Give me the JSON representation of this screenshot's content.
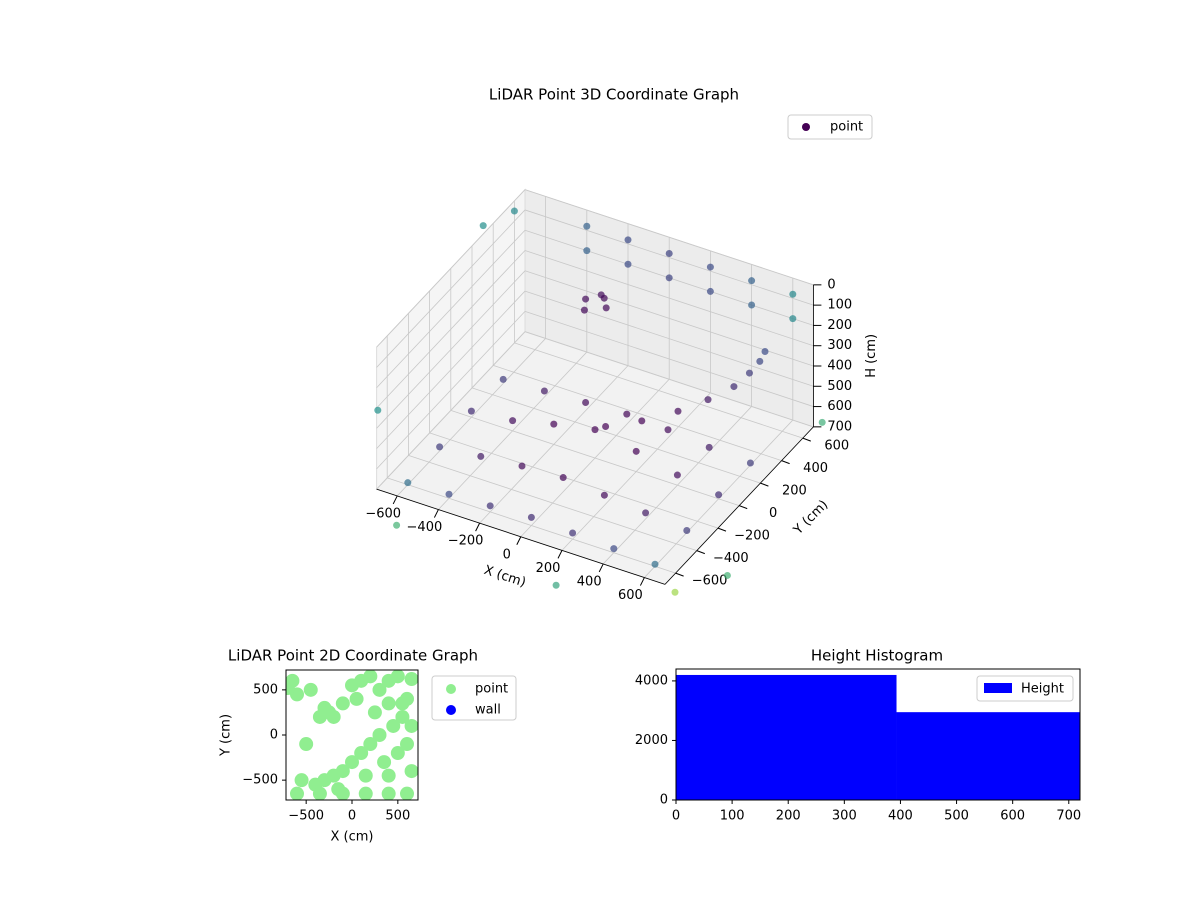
{
  "chart_data": [
    {
      "type": "scatter3d",
      "title": "LiDAR Point 3D Coordinate Graph",
      "xlabel": "X (cm)",
      "ylabel": "Y (cm)",
      "zlabel": "H (cm)",
      "xlim": [
        -700,
        700
      ],
      "ylim": [
        -700,
        700
      ],
      "zlim": [
        0,
        700
      ],
      "z_inverted": true,
      "colormap": "viridis",
      "legend": "upper right",
      "xticks": [
        {
          "value": -600,
          "label": "−600"
        },
        {
          "value": -400,
          "label": "−400"
        },
        {
          "value": -200,
          "label": "−200"
        },
        0,
        200,
        400,
        600
      ],
      "yticks": [
        {
          "value": -600,
          "label": "−600"
        },
        {
          "value": -400,
          "label": "−400"
        },
        {
          "value": -200,
          "label": "−200"
        },
        0,
        200,
        400,
        600
      ],
      "zticks": [
        0,
        100,
        200,
        300,
        400,
        500,
        600,
        700
      ],
      "series": [
        {
          "name": "point",
          "color": "#440154",
          "x": [
            -600,
            -400,
            -200,
            0,
            200,
            400,
            600,
            -600,
            -400,
            -200,
            0,
            200,
            400,
            600,
            -600,
            -400,
            -200,
            0,
            200,
            400,
            600,
            -600,
            -400,
            -200,
            0,
            200,
            400,
            600,
            0,
            150,
            300,
            420,
            520,
            580,
            620,
            640,
            -200,
            -150,
            -100,
            -180,
            -120,
            -400,
            -200,
            0,
            200,
            400,
            600,
            -400,
            -200,
            0,
            200,
            400,
            600,
            -900,
            900,
            -700,
            -800,
            800,
            -500,
            1000,
            300
          ],
          "y": [
            -600,
            -600,
            -600,
            -600,
            -600,
            -600,
            -600,
            -300,
            -300,
            -300,
            -300,
            -300,
            -300,
            -300,
            0,
            0,
            0,
            0,
            0,
            0,
            0,
            300,
            300,
            300,
            300,
            300,
            300,
            300,
            100,
            150,
            200,
            250,
            300,
            330,
            350,
            360,
            300,
            350,
            300,
            250,
            320,
            700,
            700,
            700,
            700,
            700,
            700,
            700,
            700,
            700,
            700,
            700,
            700,
            -300,
            -500,
            600,
            500,
            -800,
            -900,
            200,
            -950
          ],
          "z": [
            690,
            680,
            670,
            660,
            670,
            680,
            690,
            680,
            660,
            640,
            630,
            650,
            670,
            690,
            670,
            650,
            600,
            560,
            600,
            650,
            680,
            680,
            670,
            660,
            650,
            660,
            680,
            690,
            600,
            550,
            480,
            410,
            340,
            270,
            210,
            160,
            150,
            140,
            160,
            170,
            130,
            80,
            80,
            80,
            80,
            80,
            80,
            200,
            200,
            200,
            200,
            200,
            200,
            600,
            700,
            50,
            100,
            650,
            700,
            300,
            700
          ]
        }
      ]
    },
    {
      "type": "scatter",
      "title": "LiDAR Point 2D Coordinate Graph",
      "xlabel": "X (cm)",
      "ylabel": "Y (cm)",
      "xlim": [
        -720,
        720
      ],
      "ylim": [
        -720,
        720
      ],
      "legend": "outside right",
      "xticks": [
        {
          "value": -500,
          "label": "−500"
        },
        0,
        500
      ],
      "yticks": [
        {
          "value": -500,
          "label": "−500"
        },
        0,
        500
      ],
      "series": [
        {
          "name": "point",
          "color": "#90ee90",
          "x": [
            -650,
            -600,
            -700,
            -300,
            -250,
            -500,
            -200,
            -100,
            0,
            100,
            200,
            300,
            400,
            500,
            650,
            600,
            550,
            450,
            300,
            200,
            100,
            0,
            -100,
            -200,
            -300,
            -400,
            -550,
            -600,
            -350,
            -100,
            150,
            400,
            600,
            650,
            600,
            650,
            350,
            150,
            400,
            250,
            -150,
            500,
            550,
            -350,
            -450,
            50,
            400
          ],
          "y": [
            600,
            450,
            520,
            300,
            250,
            -100,
            200,
            350,
            550,
            600,
            650,
            500,
            600,
            650,
            620,
            400,
            200,
            100,
            0,
            -100,
            -200,
            -300,
            -400,
            -450,
            -500,
            -550,
            -500,
            -650,
            -650,
            -650,
            -650,
            -650,
            -650,
            -400,
            -100,
            100,
            -300,
            -450,
            -450,
            250,
            -600,
            -200,
            350,
            200,
            500,
            400,
            350
          ]
        },
        {
          "name": "wall",
          "color": "#0000ff",
          "x": [],
          "y": []
        }
      ]
    },
    {
      "type": "histogram",
      "title": "Height Histogram",
      "xlim": [
        0,
        720
      ],
      "ylim": [
        0,
        4400
      ],
      "legend": "upper right",
      "xticks": [
        0,
        100,
        200,
        300,
        400,
        500,
        600,
        700
      ],
      "yticks": [
        0,
        2000,
        4000
      ],
      "bins": [
        0,
        393,
        720
      ],
      "series": [
        {
          "name": "Height",
          "color": "#0000ff",
          "values": [
            4200,
            2950
          ]
        }
      ]
    }
  ]
}
